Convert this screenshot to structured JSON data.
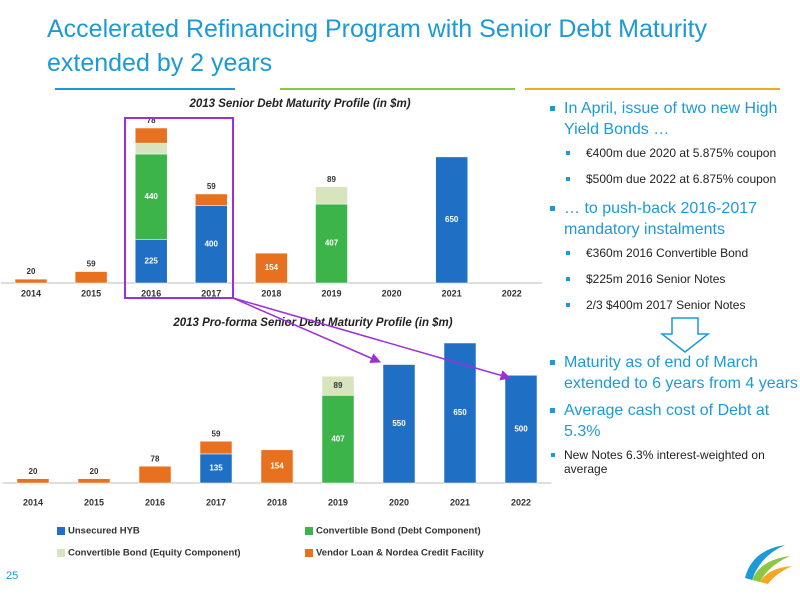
{
  "title": "Accelerated Refinancing Program with Senior Debt Maturity extended by 2 years",
  "page_number": "25",
  "chart_data": [
    {
      "type": "bar",
      "stacked": true,
      "title": "2013 Senior Debt Maturity Profile (in $m)",
      "categories": [
        "2014",
        "2015",
        "2016",
        "2017",
        "2018",
        "2019",
        "2020",
        "2021",
        "2022"
      ],
      "series": [
        {
          "color": "#1f6fc5",
          "values": [
            null,
            null,
            225,
            400,
            null,
            null,
            null,
            650,
            null
          ]
        },
        {
          "color": "#3cb44a",
          "values": [
            null,
            null,
            440,
            null,
            null,
            407,
            null,
            null,
            null
          ]
        },
        {
          "color": "#d7e4bd",
          "values": [
            null,
            null,
            56,
            null,
            null,
            89,
            null,
            null,
            null
          ]
        },
        {
          "color": "#e8711f",
          "values": [
            20,
            59,
            78,
            59,
            154,
            null,
            null,
            null,
            null
          ]
        }
      ]
    },
    {
      "type": "bar",
      "stacked": true,
      "title": "2013 Pro-forma Senior Debt  Maturity Profile (in $m)",
      "categories": [
        "2014",
        "2015",
        "2016",
        "2017",
        "2018",
        "2019",
        "2020",
        "2021",
        "2022"
      ],
      "series": [
        {
          "name": "Unsecured HYB",
          "color": "#1f6fc5",
          "values": [
            null,
            null,
            null,
            135,
            null,
            null,
            550,
            650,
            500
          ]
        },
        {
          "name": "Convertible Bond (Debt Component)",
          "color": "#3cb44a",
          "values": [
            null,
            null,
            null,
            null,
            null,
            407,
            null,
            null,
            null
          ]
        },
        {
          "name": "Convertible Bond (Equity Component)",
          "color": "#d7e4bd",
          "values": [
            null,
            null,
            null,
            null,
            null,
            89,
            null,
            null,
            null
          ]
        },
        {
          "name": "Vendor Loan & Nordea Credit Facility",
          "color": "#e8711f",
          "values": [
            20,
            20,
            78,
            59,
            154,
            null,
            null,
            null,
            null
          ]
        }
      ]
    }
  ],
  "bullets_top": [
    {
      "text": "In April, issue of two new High Yield Bonds …",
      "sub": [
        "€400m due 2020 at 5.875% coupon",
        "$500m due 2022 at 6.875% coupon"
      ]
    },
    {
      "text": "… to push-back 2016-2017 mandatory instalments",
      "sub": [
        "€360m 2016 Convertible Bond",
        "$225m 2016 Senior Notes",
        "2/3 $400m 2017 Senior Notes"
      ]
    }
  ],
  "bullets_bottom": [
    "Maturity as of end of March extended to 6 years from 4 years",
    "Average cash cost of Debt at 5.3%"
  ],
  "note": "New Notes 6.3% interest-weighted on average"
}
